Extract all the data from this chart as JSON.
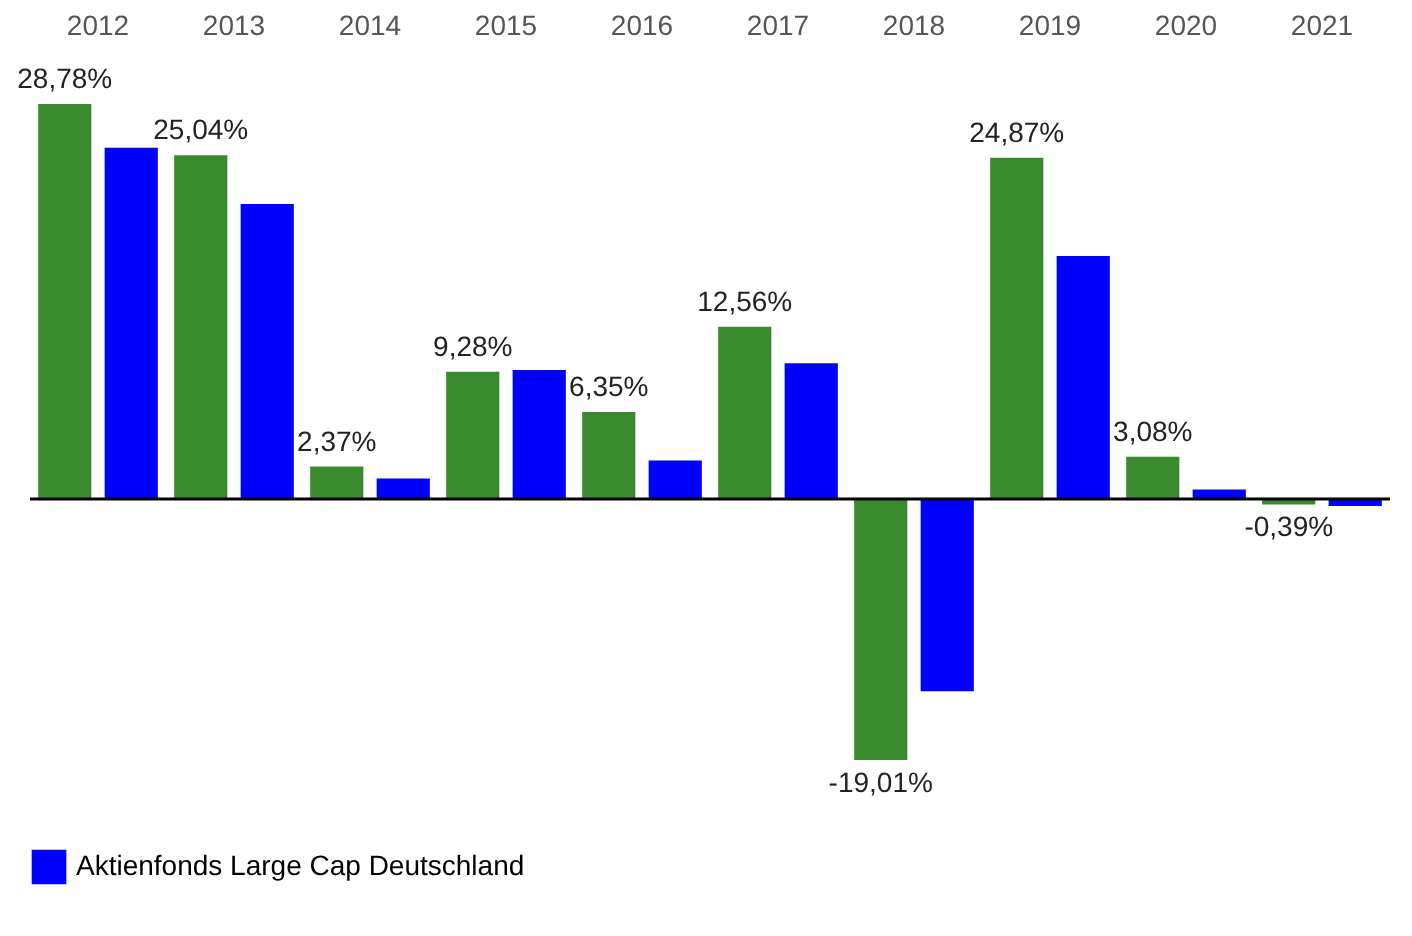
{
  "chart_data": {
    "type": "bar",
    "categories": [
      "2012",
      "2013",
      "2014",
      "2015",
      "2016",
      "2017",
      "2018",
      "2019",
      "2020",
      "2021"
    ],
    "series": [
      {
        "color": "#3a8a2e",
        "values": [
          28.78,
          25.04,
          2.37,
          9.28,
          6.35,
          12.56,
          -19.01,
          24.87,
          3.08,
          -0.39
        ],
        "value_labels": [
          "28,78%",
          "25,04%",
          "2,37%",
          "9,28%",
          "6,35%",
          "12,56%",
          "-19,01%",
          "24,87%",
          "3,08%",
          "-0,39%"
        ]
      },
      {
        "name": "Aktienfonds Large Cap  Deutschland",
        "color": "#0000ff",
        "values": [
          25.6,
          21.5,
          1.5,
          9.4,
          2.8,
          9.9,
          -14.0,
          17.7,
          0.7,
          -0.5
        ]
      }
    ],
    "legend": "bottom",
    "grid": false
  }
}
